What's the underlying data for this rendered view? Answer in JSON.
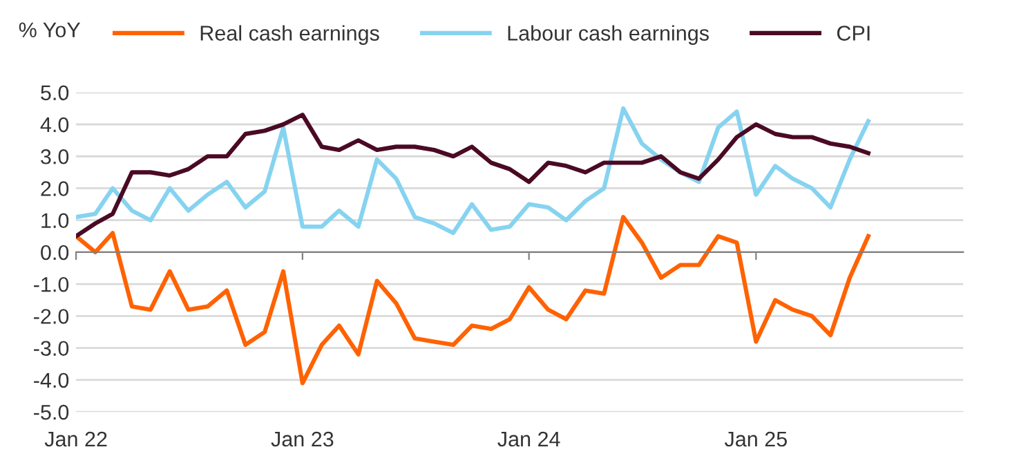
{
  "chart_data": {
    "type": "line",
    "ylabel": "% YoY",
    "x": [
      "2022-01",
      "2022-02",
      "2022-03",
      "2022-04",
      "2022-05",
      "2022-06",
      "2022-07",
      "2022-08",
      "2022-09",
      "2022-10",
      "2022-11",
      "2022-12",
      "2023-01",
      "2023-02",
      "2023-03",
      "2023-04",
      "2023-05",
      "2023-06",
      "2023-07",
      "2023-08",
      "2023-09",
      "2023-10",
      "2023-11",
      "2023-12",
      "2024-01",
      "2024-02",
      "2024-03",
      "2024-04",
      "2024-05",
      "2024-06",
      "2024-07",
      "2024-08",
      "2024-09",
      "2024-10",
      "2024-11",
      "2024-12",
      "2025-01",
      "2025-02",
      "2025-03",
      "2025-04",
      "2025-05",
      "2025-06",
      "2025-07"
    ],
    "series": [
      {
        "name": "Real cash earnings",
        "color": "#ff6200",
        "values": [
          0.5,
          0.0,
          0.6,
          -1.7,
          -1.8,
          -0.6,
          -1.8,
          -1.7,
          -1.2,
          -2.9,
          -2.5,
          -0.6,
          -4.1,
          -2.9,
          -2.3,
          -3.2,
          -0.9,
          -1.6,
          -2.7,
          -2.8,
          -2.9,
          -2.3,
          -2.4,
          -2.1,
          -1.1,
          -1.8,
          -2.1,
          -1.2,
          -1.3,
          1.1,
          0.3,
          -0.8,
          -0.4,
          -0.4,
          0.5,
          0.3,
          -2.8,
          -1.5,
          -1.8,
          -2.0,
          -2.6,
          -0.8,
          0.5
        ]
      },
      {
        "name": "Labour cash earnings",
        "color": "#86d3f0",
        "values": [
          1.1,
          1.2,
          2.0,
          1.3,
          1.0,
          2.0,
          1.3,
          1.8,
          2.2,
          1.4,
          1.9,
          3.9,
          0.8,
          0.8,
          1.3,
          0.8,
          2.9,
          2.3,
          1.1,
          0.9,
          0.6,
          1.5,
          0.7,
          0.8,
          1.5,
          1.4,
          1.0,
          1.6,
          2.0,
          4.5,
          3.4,
          2.9,
          2.5,
          2.2,
          3.9,
          4.4,
          1.8,
          2.7,
          2.3,
          2.0,
          1.4,
          2.9,
          4.1
        ]
      },
      {
        "name": "CPI",
        "color": "#4a0a24",
        "values": [
          0.5,
          0.9,
          1.2,
          2.5,
          2.5,
          2.4,
          2.6,
          3.0,
          3.0,
          3.7,
          3.8,
          4.0,
          4.3,
          3.3,
          3.2,
          3.5,
          3.2,
          3.3,
          3.3,
          3.2,
          3.0,
          3.3,
          2.8,
          2.6,
          2.2,
          2.8,
          2.7,
          2.5,
          2.8,
          2.8,
          2.8,
          3.0,
          2.5,
          2.3,
          2.9,
          3.6,
          4.0,
          3.7,
          3.6,
          3.6,
          3.4,
          3.3,
          3.1
        ]
      }
    ],
    "xlim": [
      "2022-01",
      "2025-12"
    ],
    "xticks": [
      {
        "value": "2022-01",
        "label": "Jan 22"
      },
      {
        "value": "2023-01",
        "label": "Jan 23"
      },
      {
        "value": "2024-01",
        "label": "Jan 24"
      },
      {
        "value": "2025-01",
        "label": "Jan 25"
      }
    ],
    "ylim": [
      -5,
      5
    ],
    "yticks": [
      {
        "value": -5,
        "label": "-5.0"
      },
      {
        "value": -4,
        "label": "-4.0"
      },
      {
        "value": -3,
        "label": "-3.0"
      },
      {
        "value": -2,
        "label": "-2.0"
      },
      {
        "value": -1,
        "label": "-1.0"
      },
      {
        "value": 0,
        "label": "0.0"
      },
      {
        "value": 1,
        "label": "1.0"
      },
      {
        "value": 2,
        "label": "2.0"
      },
      {
        "value": 3,
        "label": "3.0"
      },
      {
        "value": 4,
        "label": "4.0"
      },
      {
        "value": 5,
        "label": "5.0"
      }
    ],
    "grid": "y",
    "legend": "top",
    "marker": "none",
    "line_style": "solid"
  }
}
